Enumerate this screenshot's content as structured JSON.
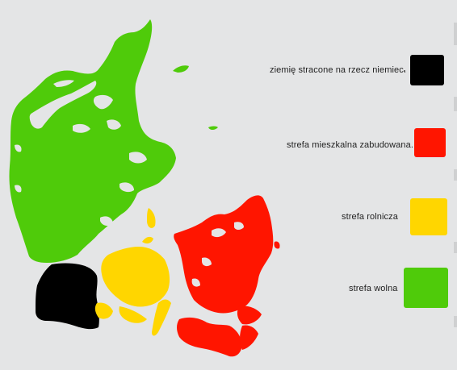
{
  "legend": [
    {
      "label": "ziemię stracone na rzecz niemiec.",
      "color": "#000000"
    },
    {
      "label": "strefa mieszkalna zabudowana.",
      "color": "#ff1500"
    },
    {
      "label": "strefa rolnicza",
      "color": "#ffd600"
    },
    {
      "label": "strefa wolna",
      "color": "#4fcb0a"
    }
  ],
  "regions": [
    {
      "name": "jutland-north",
      "zone": "strefa wolna",
      "color": "#4fcb0a"
    },
    {
      "name": "south-jutland",
      "zone": "ziemię stracone na rzecz niemiec.",
      "color": "#000000"
    },
    {
      "name": "funen",
      "zone": "strefa rolnicza",
      "color": "#ffd600"
    },
    {
      "name": "zealand",
      "zone": "strefa mieszkalna zabudowana.",
      "color": "#ff1500"
    }
  ],
  "colors": {
    "background": "#e4e5e6",
    "free": "#4fcb0a",
    "agricultural": "#ffd600",
    "residential": "#ff1500",
    "lost": "#000000"
  }
}
